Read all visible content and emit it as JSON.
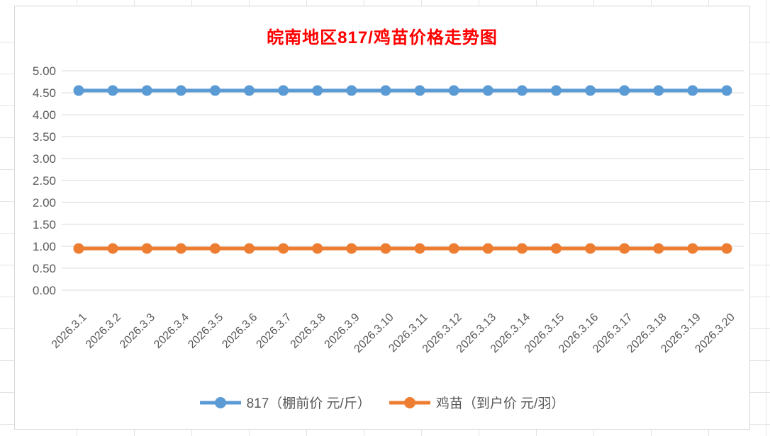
{
  "chart_data": {
    "type": "line",
    "title": "皖南地区817/鸡苗价格走势图",
    "title_color": "#FF0000",
    "categories": [
      "2026.3.1",
      "2026.3.2",
      "2026.3.3",
      "2026.3.4",
      "2026.3.5",
      "2026.3.6",
      "2026.3.7",
      "2026.3.8",
      "2026.3.9",
      "2026.3.10",
      "2026.3.11",
      "2026.3.12",
      "2026.3.13",
      "2026.3.14",
      "2026.3.15",
      "2026.3.16",
      "2026.3.17",
      "2026.3.18",
      "2026.3.19",
      "2026.3.20"
    ],
    "series": [
      {
        "name": "817（棚前价 元/斤）",
        "color": "#5B9BD5",
        "values": [
          4.55,
          4.55,
          4.55,
          4.55,
          4.55,
          4.55,
          4.55,
          4.55,
          4.55,
          4.55,
          4.55,
          4.55,
          4.55,
          4.55,
          4.55,
          4.55,
          4.55,
          4.55,
          4.55,
          4.55
        ]
      },
      {
        "name": "鸡苗（到户价 元/羽）",
        "color": "#ED7D31",
        "values": [
          0.95,
          0.95,
          0.95,
          0.95,
          0.95,
          0.95,
          0.95,
          0.95,
          0.95,
          0.95,
          0.95,
          0.95,
          0.95,
          0.95,
          0.95,
          0.95,
          0.95,
          0.95,
          0.95,
          0.95
        ]
      }
    ],
    "ylim": [
      0,
      5
    ],
    "ytick_step": 0.5,
    "ytick_decimals": 2,
    "grid": true,
    "legend_position": "bottom",
    "axis_label_color": "#595959",
    "gridline_color": "#D9D9D9"
  }
}
